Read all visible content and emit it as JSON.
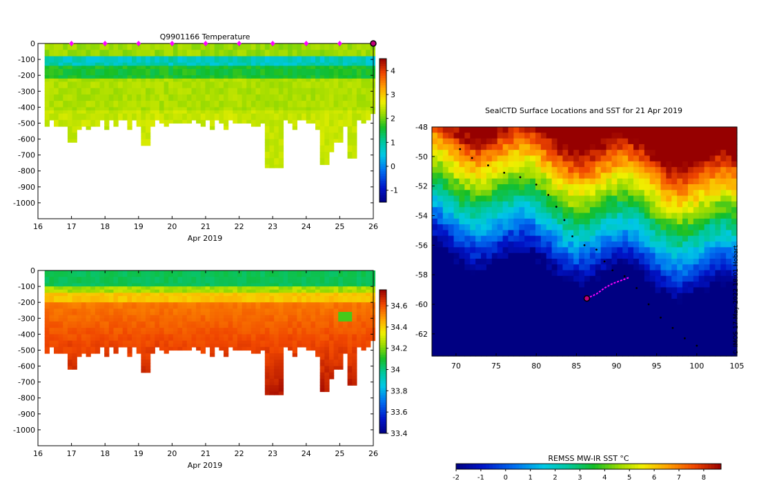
{
  "credit": "© IMOS 17-May-2022 18:01 Hobart",
  "chart_data": [
    {
      "type": "heatmap",
      "title": "Q9901166  Temperature",
      "xlabel": "Apr 2019",
      "xticks": [
        "16",
        "17",
        "18",
        "19",
        "20",
        "21",
        "22",
        "23",
        "24",
        "25",
        "26"
      ],
      "xlim": [
        16,
        26
      ],
      "ylim": [
        -1100,
        0
      ],
      "yticks": [
        "0",
        "-100",
        "-200",
        "-300",
        "-400",
        "-500",
        "-600",
        "-700",
        "-800",
        "-900",
        "-1000"
      ],
      "colorbar_ticks": [
        "-1",
        "0",
        "1",
        "2",
        "3",
        "4"
      ],
      "colorbar_range": [
        -1.5,
        4.5
      ],
      "profile_markers_days": [
        17,
        18,
        19,
        20,
        21,
        22,
        23,
        24,
        25
      ],
      "current_day": 26,
      "colors": {
        "marker": "#ff00ff",
        "current": "#c0007a"
      }
    },
    {
      "type": "heatmap",
      "title": "",
      "xlabel": "Apr 2019",
      "xticks": [
        "16",
        "17",
        "18",
        "19",
        "20",
        "21",
        "22",
        "23",
        "24",
        "25",
        "26"
      ],
      "xlim": [
        16,
        26
      ],
      "ylim": [
        -1100,
        0
      ],
      "yticks": [
        "0",
        "-100",
        "-200",
        "-300",
        "-400",
        "-500",
        "-600",
        "-700",
        "-800",
        "-900",
        "-1000"
      ],
      "colorbar_ticks": [
        "33.4",
        "33.6",
        "33.8",
        "34",
        "34.2",
        "34.4",
        "34.6"
      ],
      "colorbar_range": [
        33.4,
        34.75
      ]
    },
    {
      "type": "heatmap",
      "title": "SealCTD Surface Locations and SST for 21 Apr 2019",
      "xlim": [
        67,
        105
      ],
      "ylim": [
        -63.5,
        -48
      ],
      "xticks": [
        "70",
        "75",
        "80",
        "85",
        "90",
        "95",
        "100",
        "105"
      ],
      "yticks": [
        "-48",
        "-50",
        "-52",
        "-54",
        "-56",
        "-58",
        "-60",
        "-62"
      ],
      "colorbar_label": "REMSS MW-IR SST °C",
      "colorbar_ticks": [
        "-2",
        "-1",
        "0",
        "1",
        "2",
        "3",
        "4",
        "5",
        "6",
        "7",
        "8"
      ],
      "colorbar_range": [
        -2,
        8.7
      ],
      "track": [
        [
          70.5,
          -49.5
        ],
        [
          72,
          -50.1
        ],
        [
          74,
          -50.6
        ],
        [
          76,
          -51.1
        ],
        [
          78,
          -51.4
        ],
        [
          80,
          -51.9
        ],
        [
          81.5,
          -52.6
        ],
        [
          82.5,
          -53.4
        ],
        [
          83.5,
          -54.3
        ],
        [
          84.5,
          -55.4
        ],
        [
          86,
          -56
        ],
        [
          87.5,
          -56.3
        ],
        [
          88.5,
          -57.1
        ],
        [
          89.5,
          -57.7
        ],
        [
          91,
          -58.1
        ],
        [
          92.5,
          -58.9
        ],
        [
          94,
          -60
        ],
        [
          95.5,
          -60.9
        ],
        [
          97,
          -61.6
        ],
        [
          98.5,
          -62.3
        ],
        [
          100,
          -62.8
        ]
      ],
      "highlighted_track": [
        [
          86.3,
          -59.6
        ],
        [
          87.5,
          -59.3
        ],
        [
          88.5,
          -58.9
        ],
        [
          89.5,
          -58.6
        ],
        [
          90.5,
          -58.4
        ],
        [
          91.5,
          -58.2
        ]
      ],
      "current_position": [
        86.3,
        -59.6
      ],
      "colors": {
        "track": "#000000",
        "highlight": "#ff00ff",
        "current": "#c0007a"
      }
    }
  ]
}
